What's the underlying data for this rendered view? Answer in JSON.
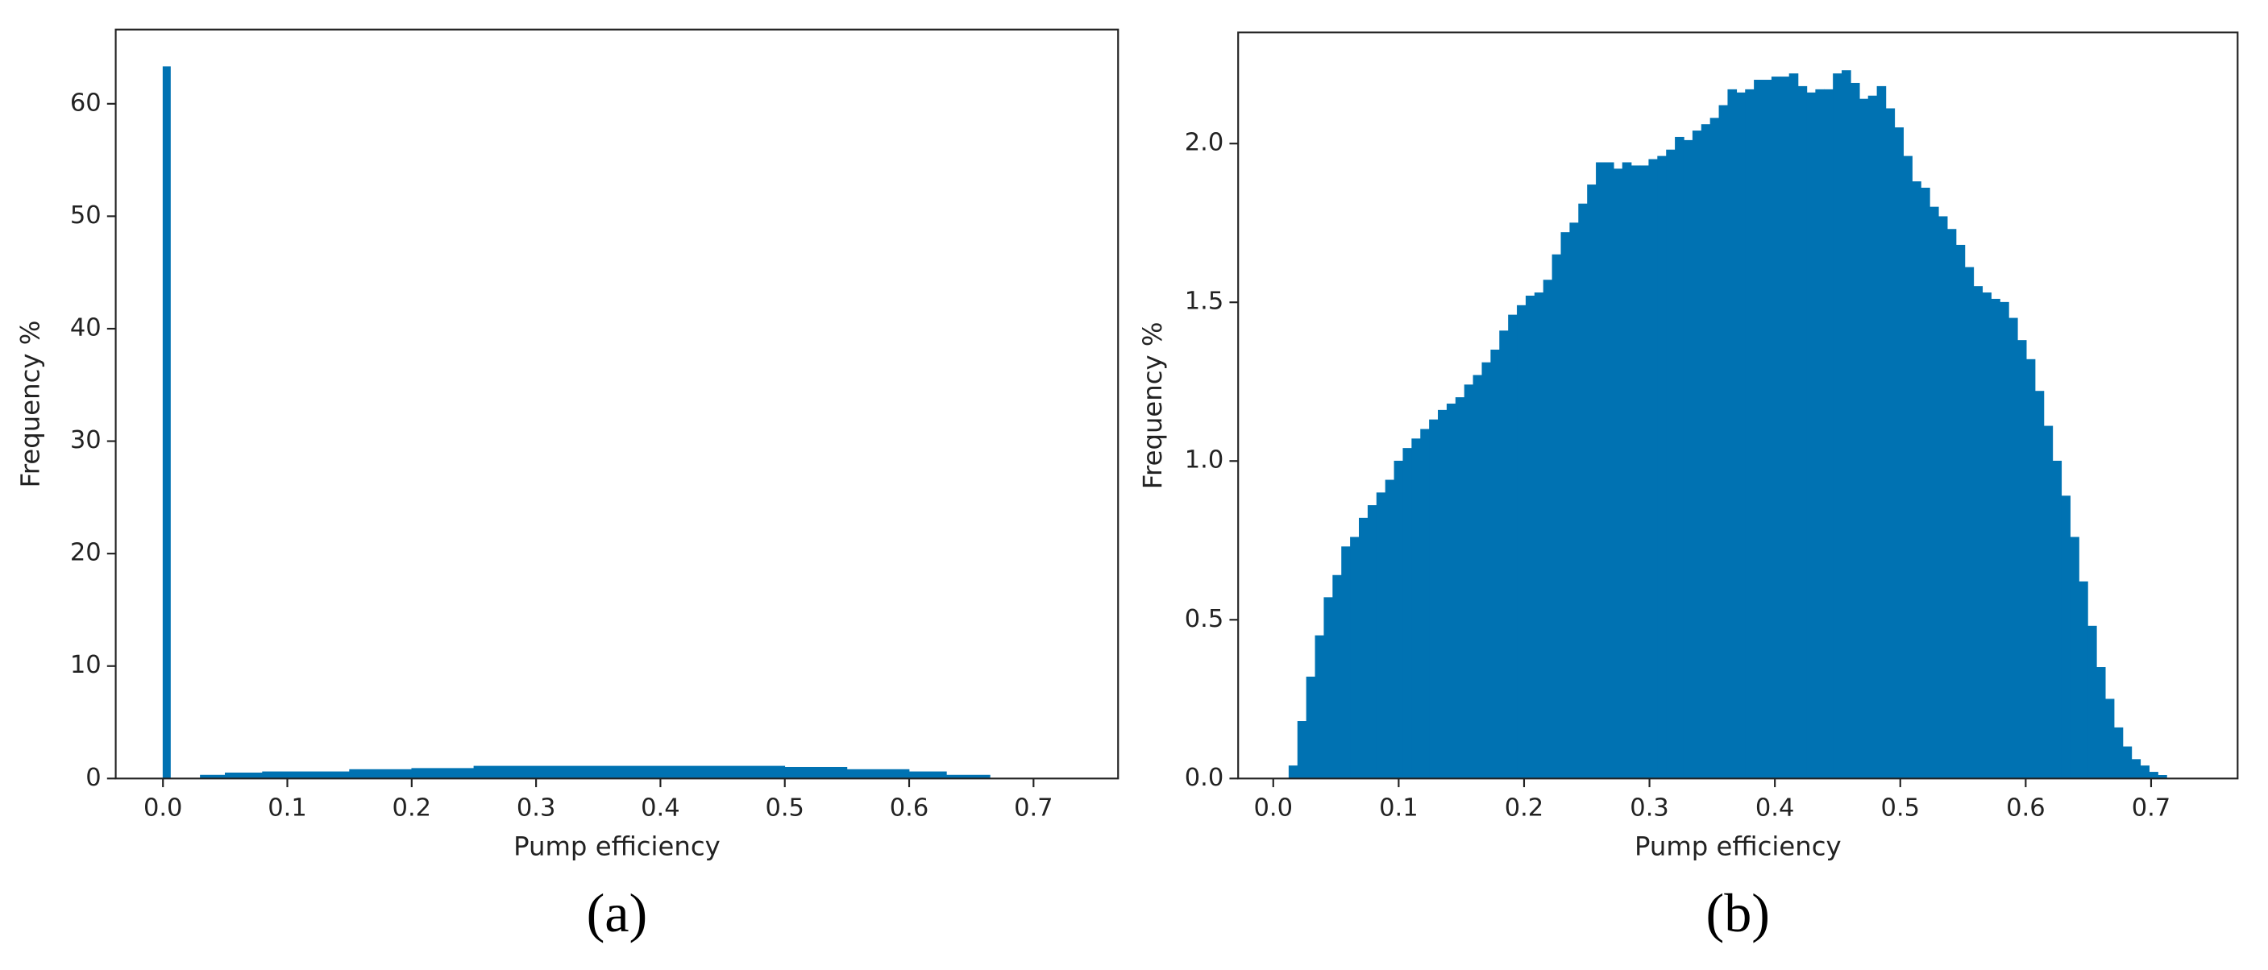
{
  "chart_data": [
    {
      "type": "histogram",
      "panel_label": "(a)",
      "x_label": "Pump efficiency",
      "y_label": "Frequency %",
      "color": "#0072b2",
      "bins": [
        0,
        0.006,
        0.03,
        0.05,
        0.08,
        0.15,
        0.2,
        0.25,
        0.5,
        0.55,
        0.6,
        0.63,
        0.665
      ],
      "values": [
        63.3,
        0,
        0.3,
        0.5,
        0.6,
        0.8,
        0.9,
        1.1,
        1.0,
        0.8,
        0.6,
        0.3
      ],
      "xlim": [
        -0.038,
        0.768
      ],
      "ylim": [
        0,
        66.6
      ],
      "xticks": [
        {
          "value": 0,
          "label": "0.0"
        },
        0.1,
        0.2,
        0.3,
        0.4,
        0.5,
        0.6,
        0.7
      ],
      "yticks": [
        0,
        10,
        20,
        30,
        40,
        50,
        60
      ]
    },
    {
      "type": "histogram",
      "panel_label": "(b)",
      "x_label": "Pump efficiency",
      "y_label": "Frequency %",
      "color": "#0072b2",
      "bins": [
        0.0125,
        0.0195,
        0.0265,
        0.0335,
        0.0405,
        0.0475,
        0.0545,
        0.0615,
        0.0685,
        0.0755,
        0.0825,
        0.0895,
        0.0965,
        0.1035,
        0.1105,
        0.1175,
        0.1245,
        0.1315,
        0.1385,
        0.1455,
        0.1525,
        0.1595,
        0.1665,
        0.1735,
        0.1805,
        0.1875,
        0.1945,
        0.2015,
        0.2085,
        0.2155,
        0.2225,
        0.2295,
        0.2365,
        0.2435,
        0.2505,
        0.2575,
        0.2645,
        0.2715,
        0.2785,
        0.2855,
        0.2925,
        0.2995,
        0.3065,
        0.3135,
        0.3205,
        0.3275,
        0.3345,
        0.3415,
        0.3485,
        0.3555,
        0.3625,
        0.3695,
        0.3765,
        0.3835,
        0.3905,
        0.3975,
        0.4045,
        0.4115,
        0.4185,
        0.4255,
        0.4325,
        0.4395,
        0.4465,
        0.4535,
        0.4605,
        0.4675,
        0.4745,
        0.4815,
        0.4885,
        0.4955,
        0.5025,
        0.5095,
        0.5165,
        0.5235,
        0.5305,
        0.5375,
        0.5445,
        0.5515,
        0.5585,
        0.5655,
        0.5725,
        0.5795,
        0.5865,
        0.5935,
        0.6005,
        0.6075,
        0.6145,
        0.6215,
        0.6285,
        0.6355,
        0.6425,
        0.6495,
        0.6565,
        0.6635,
        0.6705,
        0.6775,
        0.6845,
        0.6915,
        0.6985,
        0.7055,
        0.7125
      ],
      "values": [
        0.04,
        0.18,
        0.32,
        0.45,
        0.57,
        0.64,
        0.73,
        0.76,
        0.82,
        0.86,
        0.9,
        0.94,
        1.0,
        1.04,
        1.07,
        1.1,
        1.13,
        1.16,
        1.18,
        1.2,
        1.24,
        1.27,
        1.31,
        1.35,
        1.41,
        1.46,
        1.49,
        1.52,
        1.53,
        1.57,
        1.65,
        1.72,
        1.75,
        1.81,
        1.87,
        1.94,
        1.94,
        1.92,
        1.94,
        1.93,
        1.93,
        1.95,
        1.96,
        1.98,
        2.02,
        2.01,
        2.04,
        2.06,
        2.08,
        2.12,
        2.17,
        2.16,
        2.17,
        2.2,
        2.2,
        2.21,
        2.21,
        2.22,
        2.18,
        2.16,
        2.17,
        2.17,
        2.22,
        2.23,
        2.19,
        2.14,
        2.15,
        2.18,
        2.11,
        2.05,
        1.96,
        1.88,
        1.86,
        1.8,
        1.77,
        1.73,
        1.68,
        1.61,
        1.55,
        1.53,
        1.51,
        1.5,
        1.45,
        1.38,
        1.32,
        1.22,
        1.11,
        1.0,
        0.89,
        0.76,
        0.62,
        0.48,
        0.35,
        0.25,
        0.16,
        0.1,
        0.06,
        0.04,
        0.02,
        0.01
      ],
      "xlim": [
        -0.028,
        0.769
      ],
      "ylim": [
        0,
        2.35
      ],
      "xticks": [
        {
          "value": 0,
          "label": "0.0"
        },
        0.1,
        0.2,
        0.3,
        0.4,
        0.5,
        0.6,
        0.7
      ],
      "yticks": [
        {
          "value": 0,
          "label": "0.0"
        },
        0.5,
        {
          "value": 1,
          "label": "1.0"
        },
        1.5,
        {
          "value": 2,
          "label": "2.0"
        }
      ]
    }
  ]
}
